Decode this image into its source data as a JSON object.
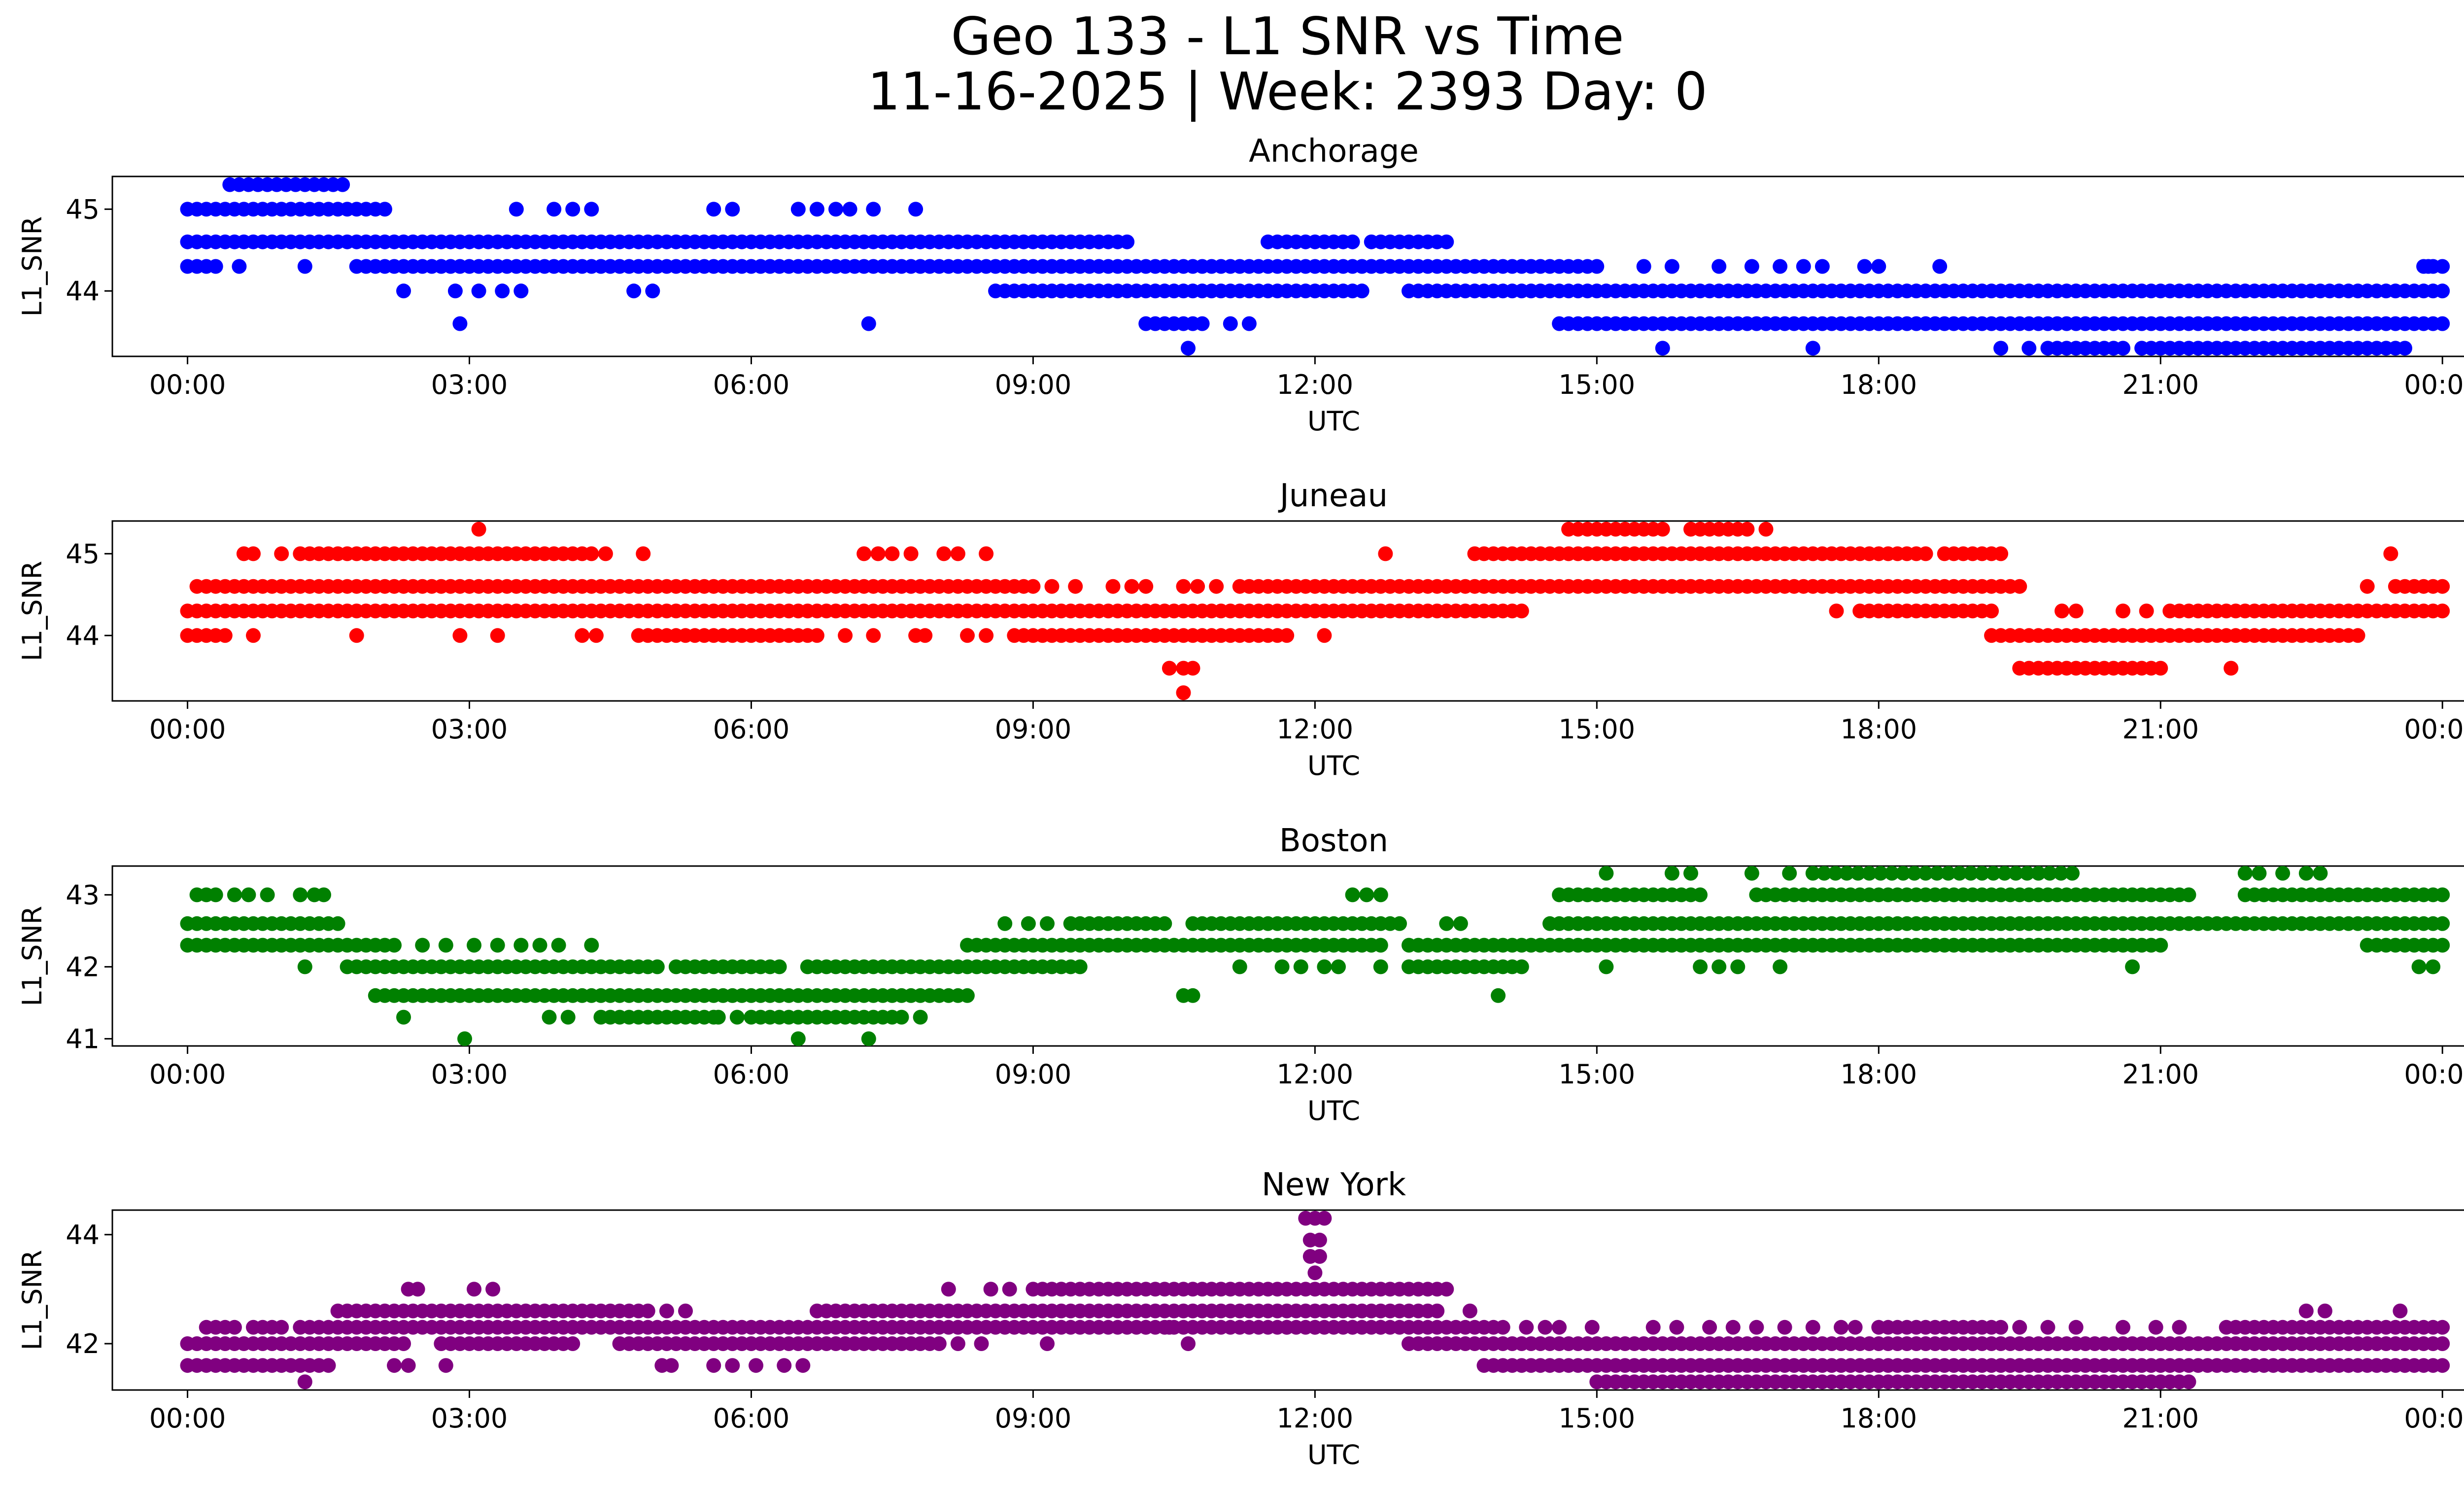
{
  "figure": {
    "title_line1": "Geo 133 - L1 SNR vs Time",
    "title_line2": "11-16-2025 | Week: 2393 Day: 0"
  },
  "chart_data": [
    {
      "type": "scatter",
      "title": "Anchorage",
      "color": "#0000ff",
      "xlabel": "UTC",
      "ylabel": "L1_SNR",
      "x_unit": "hours UTC",
      "xlim": [
        -0.8,
        25.2
      ],
      "ylim": [
        43.2,
        45.4
      ],
      "x_ticks": [
        0,
        3,
        6,
        9,
        12,
        15,
        18,
        21,
        24
      ],
      "x_tick_labels": [
        "00:00",
        "03:00",
        "06:00",
        "09:00",
        "12:00",
        "15:00",
        "18:00",
        "21:00",
        "00:00"
      ],
      "y_ticks": [
        44,
        45
      ],
      "y_tick_labels": [
        "44",
        "45"
      ],
      "runs": [
        [
          45.3,
          0.45,
          1.7,
          0.1
        ],
        [
          45.0,
          0.0,
          2.15,
          0.1
        ],
        [
          44.6,
          0.0,
          10.0,
          0.1
        ],
        [
          44.6,
          11.5,
          12.4,
          0.1
        ],
        [
          44.6,
          12.6,
          13.4,
          0.1
        ],
        [
          44.3,
          0.0,
          0.3,
          0.1
        ],
        [
          44.3,
          1.8,
          15.0,
          0.1
        ],
        [
          44.3,
          23.8,
          24.0,
          0.1
        ],
        [
          44.0,
          8.6,
          12.5,
          0.1
        ],
        [
          44.0,
          13.0,
          24.0,
          0.1
        ],
        [
          43.6,
          10.2,
          10.8,
          0.1
        ],
        [
          43.6,
          14.6,
          24.0,
          0.1
        ],
        [
          43.3,
          19.9,
          20.6,
          0.1
        ],
        [
          43.3,
          20.8,
          23.6,
          0.1
        ]
      ],
      "points": [
        [
          0.55,
          44.3
        ],
        [
          1.25,
          44.3
        ],
        [
          2.3,
          44.0
        ],
        [
          2.85,
          44.0
        ],
        [
          3.1,
          44.0
        ],
        [
          2.9,
          43.6
        ],
        [
          3.35,
          44.0
        ],
        [
          3.55,
          44.0
        ],
        [
          3.5,
          45.0
        ],
        [
          3.9,
          45.0
        ],
        [
          4.1,
          45.0
        ],
        [
          4.3,
          45.0
        ],
        [
          4.75,
          44.0
        ],
        [
          4.95,
          44.0
        ],
        [
          5.6,
          45.0
        ],
        [
          5.8,
          45.0
        ],
        [
          6.5,
          45.0
        ],
        [
          6.7,
          45.0
        ],
        [
          6.9,
          45.0
        ],
        [
          7.05,
          45.0
        ],
        [
          7.3,
          45.0
        ],
        [
          7.25,
          43.6
        ],
        [
          7.75,
          45.0
        ],
        [
          11.1,
          43.6
        ],
        [
          11.3,
          43.6
        ],
        [
          10.65,
          43.3
        ],
        [
          15.5,
          44.3
        ],
        [
          15.8,
          44.3
        ],
        [
          16.3,
          44.3
        ],
        [
          16.65,
          44.3
        ],
        [
          16.95,
          44.3
        ],
        [
          17.2,
          44.3
        ],
        [
          17.4,
          44.3
        ],
        [
          17.85,
          44.3
        ],
        [
          18.0,
          44.3
        ],
        [
          18.65,
          44.3
        ],
        [
          15.7,
          43.3
        ],
        [
          17.3,
          43.3
        ],
        [
          19.3,
          43.3
        ],
        [
          19.6,
          43.3
        ],
        [
          19.8,
          43.3
        ],
        [
          23.85,
          44.3
        ]
      ]
    },
    {
      "type": "scatter",
      "title": "Juneau",
      "color": "#ff0000",
      "xlabel": "UTC",
      "ylabel": "L1_SNR",
      "x_unit": "hours UTC",
      "xlim": [
        -0.8,
        25.2
      ],
      "ylim": [
        43.2,
        45.4
      ],
      "x_ticks": [
        0,
        3,
        6,
        9,
        12,
        15,
        18,
        21,
        24
      ],
      "x_tick_labels": [
        "00:00",
        "03:00",
        "06:00",
        "09:00",
        "12:00",
        "15:00",
        "18:00",
        "21:00",
        "00:00"
      ],
      "y_ticks": [
        44,
        45
      ],
      "y_tick_labels": [
        "44",
        "45"
      ],
      "runs": [
        [
          45.3,
          14.7,
          15.7,
          0.1
        ],
        [
          45.3,
          16.0,
          16.6,
          0.1
        ],
        [
          45.0,
          1.2,
          4.3,
          0.1
        ],
        [
          45.0,
          13.7,
          18.5,
          0.1
        ],
        [
          45.0,
          18.7,
          19.3,
          0.1
        ],
        [
          44.6,
          0.1,
          9.0,
          0.1
        ],
        [
          44.6,
          11.2,
          19.5,
          0.1
        ],
        [
          44.6,
          23.5,
          24.0,
          0.1
        ],
        [
          44.3,
          0.0,
          14.2,
          0.1
        ],
        [
          44.3,
          17.8,
          19.2,
          0.1
        ],
        [
          44.3,
          21.1,
          24.0,
          0.1
        ],
        [
          44.0,
          0.0,
          0.4,
          0.1
        ],
        [
          44.0,
          4.8,
          5.7,
          0.1
        ],
        [
          44.0,
          5.8,
          6.7,
          0.1
        ],
        [
          44.0,
          8.8,
          11.7,
          0.1
        ],
        [
          44.0,
          19.2,
          23.1,
          0.1
        ],
        [
          43.6,
          19.5,
          21.0,
          0.1
        ]
      ],
      "points": [
        [
          0.6,
          45.0
        ],
        [
          0.7,
          45.0
        ],
        [
          1.0,
          45.0
        ],
        [
          4.45,
          45.0
        ],
        [
          4.85,
          45.0
        ],
        [
          7.2,
          45.0
        ],
        [
          7.35,
          45.0
        ],
        [
          7.5,
          45.0
        ],
        [
          7.7,
          45.0
        ],
        [
          8.05,
          45.0
        ],
        [
          8.2,
          45.0
        ],
        [
          8.5,
          45.0
        ],
        [
          12.75,
          45.0
        ],
        [
          16.8,
          45.3
        ],
        [
          23.45,
          45.0
        ],
        [
          3.1,
          45.3
        ],
        [
          9.2,
          44.6
        ],
        [
          9.45,
          44.6
        ],
        [
          9.85,
          44.6
        ],
        [
          10.05,
          44.6
        ],
        [
          10.2,
          44.6
        ],
        [
          10.6,
          44.6
        ],
        [
          10.75,
          44.6
        ],
        [
          10.95,
          44.6
        ],
        [
          23.2,
          44.6
        ],
        [
          0.7,
          44.0
        ],
        [
          1.8,
          44.0
        ],
        [
          2.9,
          44.0
        ],
        [
          3.3,
          44.0
        ],
        [
          4.2,
          44.0
        ],
        [
          4.35,
          44.0
        ],
        [
          7.0,
          44.0
        ],
        [
          7.3,
          44.0
        ],
        [
          7.75,
          44.0
        ],
        [
          7.85,
          44.0
        ],
        [
          8.3,
          44.0
        ],
        [
          8.5,
          44.0
        ],
        [
          12.1,
          44.0
        ],
        [
          17.55,
          44.3
        ],
        [
          19.95,
          44.3
        ],
        [
          20.1,
          44.3
        ],
        [
          20.6,
          44.3
        ],
        [
          20.85,
          44.3
        ],
        [
          10.45,
          43.6
        ],
        [
          10.6,
          43.6
        ],
        [
          10.7,
          43.6
        ],
        [
          10.6,
          43.3
        ],
        [
          21.75,
          43.6
        ]
      ]
    },
    {
      "type": "scatter",
      "title": "Boston",
      "color": "#008000",
      "xlabel": "UTC",
      "ylabel": "L1_SNR",
      "x_unit": "hours UTC",
      "xlim": [
        -0.8,
        25.2
      ],
      "ylim": [
        40.9,
        43.4
      ],
      "x_ticks": [
        0,
        3,
        6,
        9,
        12,
        15,
        18,
        21,
        24
      ],
      "x_tick_labels": [
        "00:00",
        "03:00",
        "06:00",
        "09:00",
        "12:00",
        "15:00",
        "18:00",
        "21:00",
        "00:00"
      ],
      "y_ticks": [
        41,
        42,
        43
      ],
      "y_tick_labels": [
        "41",
        "42",
        "43"
      ],
      "runs": [
        [
          43.3,
          17.3,
          20.1,
          0.12
        ],
        [
          43.0,
          14.6,
          16.1,
          0.1
        ],
        [
          43.0,
          16.7,
          21.3,
          0.1
        ],
        [
          43.0,
          21.9,
          24.0,
          0.1
        ],
        [
          42.6,
          0.0,
          1.6,
          0.1
        ],
        [
          42.6,
          9.4,
          10.4,
          0.1
        ],
        [
          42.6,
          10.7,
          12.9,
          0.1
        ],
        [
          42.6,
          14.5,
          24.0,
          0.1
        ],
        [
          42.3,
          0.0,
          2.2,
          0.1
        ],
        [
          42.3,
          8.3,
          12.7,
          0.1
        ],
        [
          42.3,
          13.0,
          21.0,
          0.1
        ],
        [
          42.3,
          23.2,
          24.0,
          0.1
        ],
        [
          42.0,
          1.7,
          5.0,
          0.1
        ],
        [
          42.0,
          5.2,
          6.3,
          0.1
        ],
        [
          42.0,
          6.6,
          9.5,
          0.1
        ],
        [
          42.0,
          13.0,
          14.2,
          0.1
        ],
        [
          41.6,
          2.0,
          8.3,
          0.1
        ],
        [
          41.3,
          4.4,
          5.6,
          0.1
        ],
        [
          41.3,
          6.0,
          7.6,
          0.1
        ]
      ],
      "points": [
        [
          0.1,
          43.0
        ],
        [
          0.2,
          43.0
        ],
        [
          0.3,
          43.0
        ],
        [
          0.5,
          43.0
        ],
        [
          0.65,
          43.0
        ],
        [
          0.85,
          43.0
        ],
        [
          1.2,
          43.0
        ],
        [
          1.35,
          43.0
        ],
        [
          1.45,
          43.0
        ],
        [
          12.4,
          43.0
        ],
        [
          12.55,
          43.0
        ],
        [
          12.7,
          43.0
        ],
        [
          15.1,
          43.3
        ],
        [
          15.8,
          43.3
        ],
        [
          16.0,
          43.3
        ],
        [
          16.65,
          43.3
        ],
        [
          17.05,
          43.3
        ],
        [
          21.9,
          43.3
        ],
        [
          22.05,
          43.3
        ],
        [
          22.3,
          43.3
        ],
        [
          22.55,
          43.3
        ],
        [
          22.7,
          43.3
        ],
        [
          8.7,
          42.6
        ],
        [
          8.95,
          42.6
        ],
        [
          9.15,
          42.6
        ],
        [
          13.4,
          42.6
        ],
        [
          13.55,
          42.6
        ],
        [
          2.5,
          42.3
        ],
        [
          2.75,
          42.3
        ],
        [
          3.05,
          42.3
        ],
        [
          3.3,
          42.3
        ],
        [
          3.55,
          42.3
        ],
        [
          3.75,
          42.3
        ],
        [
          3.95,
          42.3
        ],
        [
          4.3,
          42.3
        ],
        [
          1.25,
          42.0
        ],
        [
          11.2,
          42.0
        ],
        [
          11.65,
          42.0
        ],
        [
          11.85,
          42.0
        ],
        [
          12.1,
          42.0
        ],
        [
          12.25,
          42.0
        ],
        [
          12.7,
          42.0
        ],
        [
          15.1,
          42.0
        ],
        [
          16.1,
          42.0
        ],
        [
          16.3,
          42.0
        ],
        [
          16.5,
          42.0
        ],
        [
          16.95,
          42.0
        ],
        [
          20.7,
          42.0
        ],
        [
          23.75,
          42.0
        ],
        [
          23.9,
          42.0
        ],
        [
          10.6,
          41.6
        ],
        [
          10.7,
          41.6
        ],
        [
          13.95,
          41.6
        ],
        [
          2.3,
          41.3
        ],
        [
          3.85,
          41.3
        ],
        [
          4.05,
          41.3
        ],
        [
          5.65,
          41.3
        ],
        [
          5.85,
          41.3
        ],
        [
          7.8,
          41.3
        ],
        [
          2.95,
          41.0
        ],
        [
          6.5,
          41.0
        ],
        [
          7.25,
          41.0
        ]
      ]
    },
    {
      "type": "scatter",
      "title": "New York",
      "color": "#800080",
      "xlabel": "UTC",
      "ylabel": "L1_SNR",
      "x_unit": "hours UTC",
      "xlim": [
        -0.8,
        25.2
      ],
      "ylim": [
        41.15,
        44.45
      ],
      "x_ticks": [
        0,
        3,
        6,
        9,
        12,
        15,
        18,
        21,
        24
      ],
      "x_tick_labels": [
        "00:00",
        "03:00",
        "06:00",
        "09:00",
        "12:00",
        "15:00",
        "18:00",
        "21:00",
        "00:00"
      ],
      "y_ticks": [
        42,
        44
      ],
      "y_tick_labels": [
        "42",
        "44"
      ],
      "runs": [
        [
          43.0,
          9.0,
          13.4,
          0.1
        ],
        [
          42.6,
          1.6,
          4.9,
          0.1
        ],
        [
          42.6,
          6.7,
          13.3,
          0.1
        ],
        [
          42.3,
          0.2,
          0.5,
          0.1
        ],
        [
          42.3,
          0.7,
          1.0,
          0.1
        ],
        [
          42.3,
          1.2,
          14.0,
          0.1
        ],
        [
          42.3,
          18.0,
          19.3,
          0.1
        ],
        [
          42.3,
          21.7,
          24.0,
          0.1
        ],
        [
          42.0,
          0.0,
          2.3,
          0.1
        ],
        [
          42.0,
          2.7,
          4.1,
          0.1
        ],
        [
          42.0,
          4.6,
          8.0,
          0.1
        ],
        [
          42.0,
          13.0,
          24.0,
          0.1
        ],
        [
          41.6,
          0.0,
          1.5,
          0.1
        ],
        [
          41.6,
          13.8,
          24.0,
          0.1
        ],
        [
          41.3,
          15.0,
          21.3,
          0.1
        ]
      ],
      "points": [
        [
          2.35,
          43.0
        ],
        [
          2.45,
          43.0
        ],
        [
          3.05,
          43.0
        ],
        [
          3.25,
          43.0
        ],
        [
          8.1,
          43.0
        ],
        [
          8.55,
          43.0
        ],
        [
          8.75,
          43.0
        ],
        [
          5.1,
          42.6
        ],
        [
          5.3,
          42.6
        ],
        [
          13.65,
          42.6
        ],
        [
          22.55,
          42.6
        ],
        [
          22.75,
          42.6
        ],
        [
          23.55,
          42.6
        ],
        [
          14.25,
          42.3
        ],
        [
          14.45,
          42.3
        ],
        [
          14.6,
          42.3
        ],
        [
          14.95,
          42.3
        ],
        [
          15.6,
          42.3
        ],
        [
          15.85,
          42.3
        ],
        [
          16.2,
          42.3
        ],
        [
          16.45,
          42.3
        ],
        [
          16.7,
          42.3
        ],
        [
          17.0,
          42.3
        ],
        [
          17.3,
          42.3
        ],
        [
          17.6,
          42.3
        ],
        [
          17.75,
          42.3
        ],
        [
          19.5,
          42.3
        ],
        [
          19.8,
          42.3
        ],
        [
          20.1,
          42.3
        ],
        [
          20.6,
          42.3
        ],
        [
          20.95,
          42.3
        ],
        [
          21.2,
          42.3
        ],
        [
          10.2,
          42.3
        ],
        [
          10.45,
          42.3
        ],
        [
          11.7,
          42.3
        ],
        [
          12.0,
          42.3
        ],
        [
          12.4,
          42.3
        ],
        [
          12.7,
          42.3
        ],
        [
          8.2,
          42.0
        ],
        [
          8.45,
          42.0
        ],
        [
          9.15,
          42.0
        ],
        [
          10.65,
          42.0
        ],
        [
          2.2,
          41.6
        ],
        [
          2.35,
          41.6
        ],
        [
          2.75,
          41.6
        ],
        [
          5.05,
          41.6
        ],
        [
          5.15,
          41.6
        ],
        [
          5.6,
          41.6
        ],
        [
          5.8,
          41.6
        ],
        [
          6.05,
          41.6
        ],
        [
          6.35,
          41.6
        ],
        [
          6.55,
          41.6
        ],
        [
          1.25,
          41.3
        ],
        [
          23.0,
          41.6
        ],
        [
          23.6,
          41.6
        ],
        [
          12.0,
          43.3
        ],
        [
          11.95,
          43.6
        ],
        [
          12.05,
          43.6
        ],
        [
          11.95,
          43.9
        ],
        [
          12.05,
          43.9
        ],
        [
          11.9,
          44.3
        ],
        [
          12.0,
          44.3
        ],
        [
          12.1,
          44.3
        ]
      ]
    }
  ]
}
